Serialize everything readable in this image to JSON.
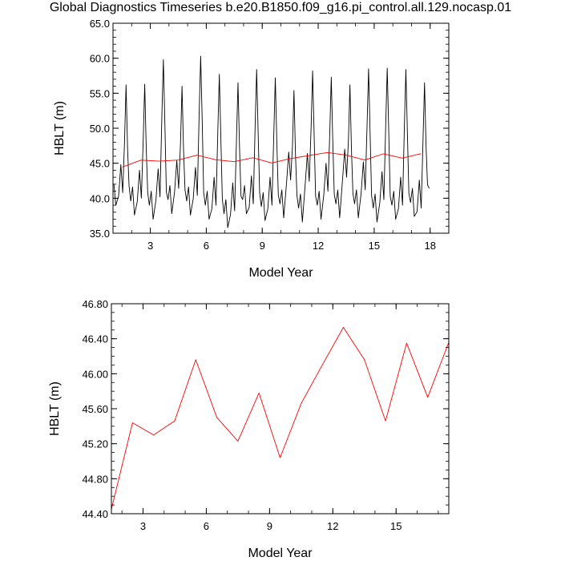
{
  "title": "Global Diagnostics Timeseries b.e20.B1850.f09_g16.pi_control.all.129.nocasp.01",
  "chart_data": [
    {
      "type": "line",
      "xlabel": "Model Year",
      "ylabel": "HBLT (m)",
      "xlim": [
        1,
        19
      ],
      "ylim": [
        35,
        65
      ],
      "xticks": [
        3,
        6,
        9,
        12,
        15,
        18
      ],
      "yticks": [
        35,
        40,
        45,
        50,
        55,
        60,
        65
      ],
      "ytick_labels": [
        "35.0",
        "40.0",
        "45.0",
        "50.0",
        "55.0",
        "60.0",
        "65.0"
      ],
      "series": [
        {
          "style": "monthly",
          "color": "#000000",
          "minima": [
            39.0,
            37.6,
            37.0,
            37.8,
            37.6,
            37.0,
            35.8,
            37.8,
            36.8,
            37.2,
            36.6,
            37.0,
            37.2,
            37.2,
            36.6,
            37.0,
            37.4
          ],
          "maxima": [
            56.2,
            56.3,
            59.8,
            56.0,
            60.3,
            57.7,
            56.5,
            58.4,
            57.2,
            55.4,
            58.2,
            57.3,
            56.2,
            58.5,
            58.6,
            58.4,
            56.5
          ],
          "secondary_peaks": [
            44.8,
            44.0,
            44.2,
            45.4,
            44.4,
            43.0,
            42.2,
            43.2,
            43.0,
            46.6,
            46.4,
            45.0,
            47.0,
            45.2,
            43.8,
            43.0,
            42.6
          ]
        },
        {
          "style": "annual",
          "color": "#ff0000",
          "x": [
            1.5,
            2.5,
            3.5,
            4.5,
            5.5,
            6.5,
            7.5,
            8.5,
            9.5,
            10.5,
            11.5,
            12.5,
            13.5,
            14.5,
            15.5,
            16.5,
            17.5
          ],
          "y": [
            44.45,
            45.44,
            45.3,
            45.46,
            46.16,
            45.5,
            45.23,
            45.78,
            45.04,
            45.66,
            46.1,
            46.53,
            46.16,
            45.46,
            46.35,
            45.73,
            46.36
          ]
        }
      ]
    },
    {
      "type": "line",
      "xlabel": "Model Year",
      "ylabel": "HBLT (m)",
      "xlim": [
        1.5,
        17.5
      ],
      "ylim": [
        44.4,
        46.8
      ],
      "xticks": [
        3,
        6,
        9,
        12,
        15
      ],
      "yticks": [
        44.4,
        44.8,
        45.2,
        45.6,
        46.0,
        46.4,
        46.8
      ],
      "ytick_labels": [
        "44.40",
        "44.80",
        "45.20",
        "45.60",
        "46.00",
        "46.40",
        "46.80"
      ],
      "series": [
        {
          "style": "annual",
          "color": "#ff0000",
          "x": [
            1.5,
            2.5,
            3.5,
            4.5,
            5.5,
            6.5,
            7.5,
            8.5,
            9.5,
            10.5,
            11.5,
            12.5,
            13.5,
            14.5,
            15.5,
            16.5,
            17.5
          ],
          "y": [
            44.45,
            45.44,
            45.3,
            45.46,
            46.16,
            45.5,
            45.23,
            45.78,
            45.04,
            45.66,
            46.1,
            46.53,
            46.16,
            45.46,
            46.35,
            45.73,
            46.36
          ]
        }
      ]
    }
  ]
}
